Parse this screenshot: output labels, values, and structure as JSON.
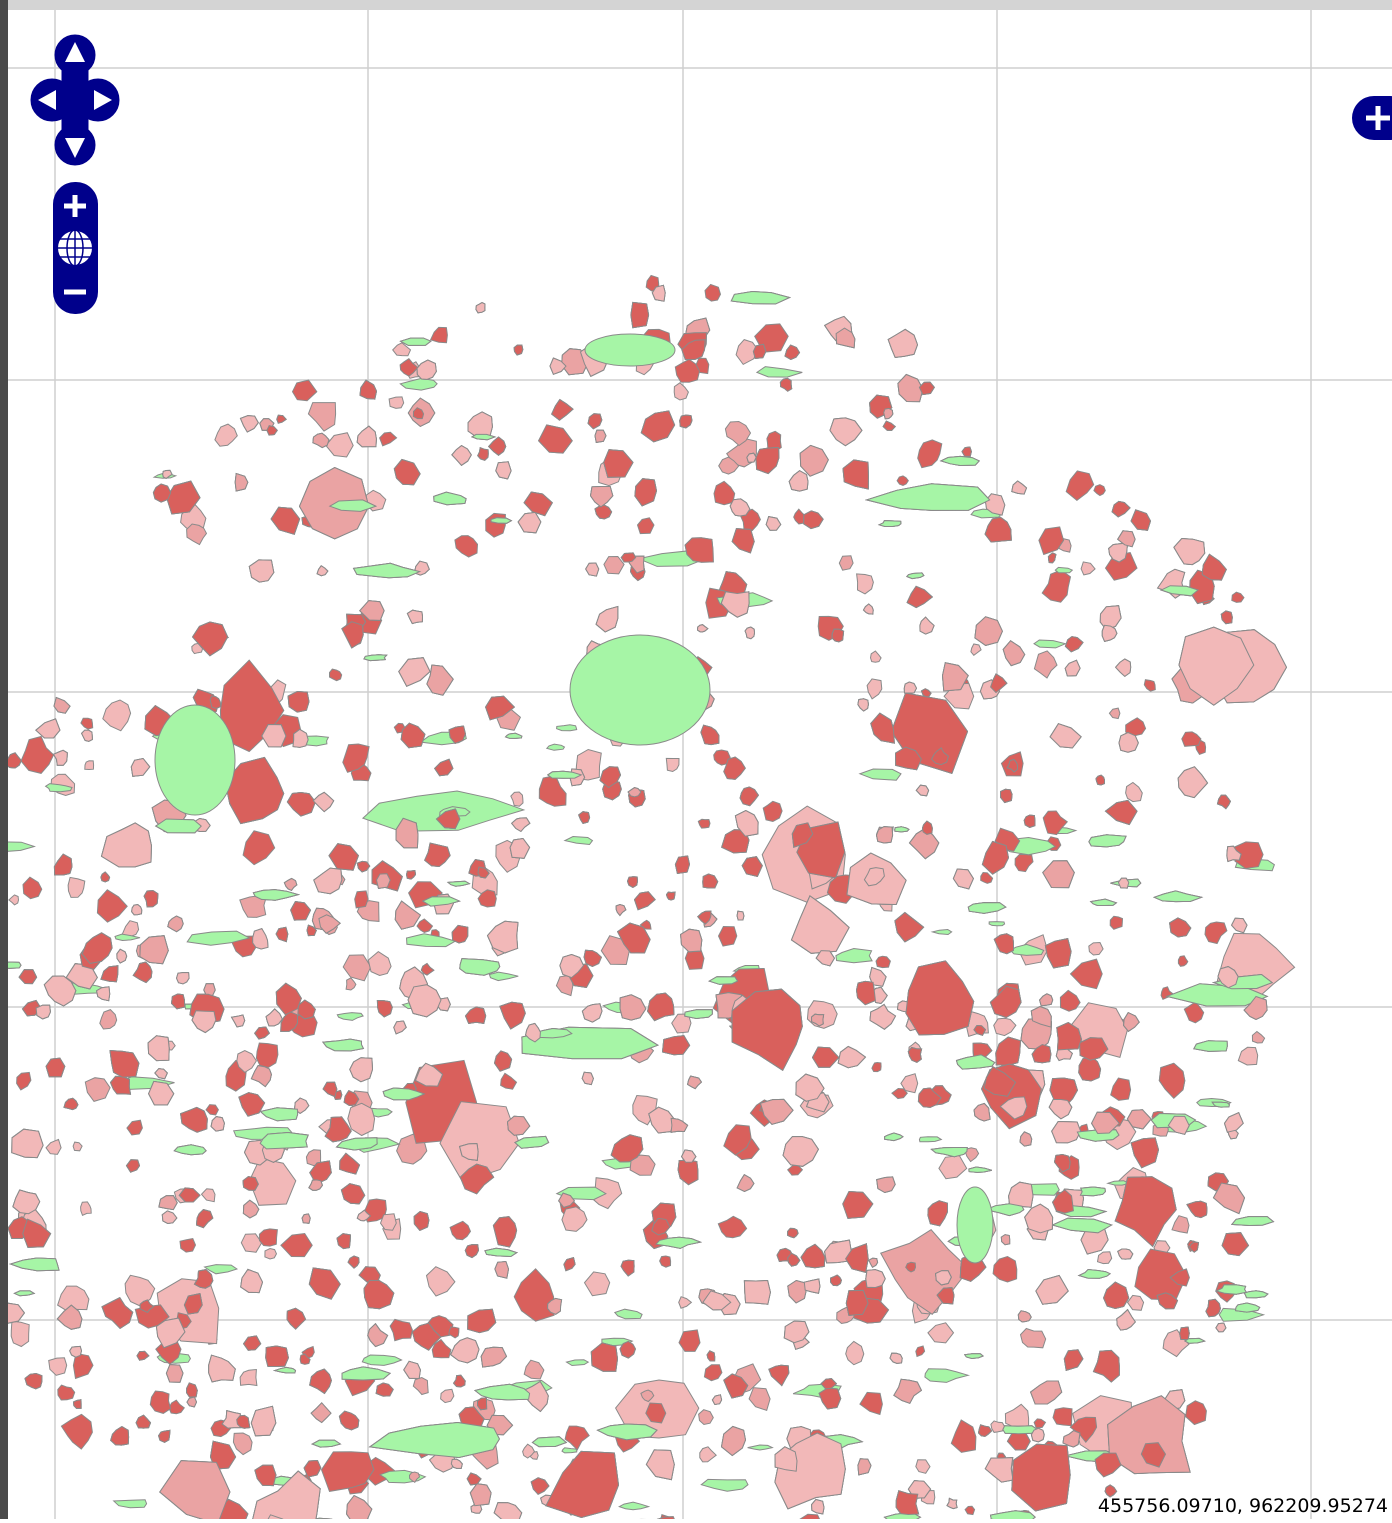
{
  "map": {
    "mouse_position": "455756.09710, 962209.95274"
  }
}
